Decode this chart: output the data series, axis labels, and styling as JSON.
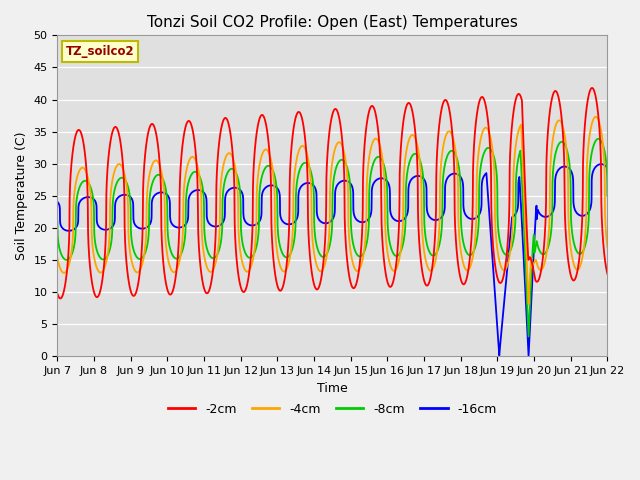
{
  "title": "Tonzi Soil CO2 Profile: Open (East) Temperatures",
  "xlabel": "Time",
  "ylabel": "Soil Temperature (C)",
  "ylim": [
    0,
    50
  ],
  "legend_label": "TZ_soilco2",
  "series_labels": [
    "-2cm",
    "-4cm",
    "-8cm",
    "-16cm"
  ],
  "series_colors": [
    "#ff0000",
    "#ffa500",
    "#00cc00",
    "#0000ff"
  ],
  "x_tick_labels": [
    "Jun 7",
    "Jun 8",
    "Jun 9",
    "Jun 10",
    "Jun 11",
    "Jun 12",
    "Jun 13",
    "Jun 14",
    "Jun 15",
    "Jun 16",
    "Jun 17",
    "Jun 18",
    "Jun 19",
    "Jun 20",
    "Jun 21",
    "Jun 22"
  ],
  "num_points": 4000,
  "title_fontsize": 11,
  "axis_fontsize": 9,
  "tick_fontsize": 8
}
